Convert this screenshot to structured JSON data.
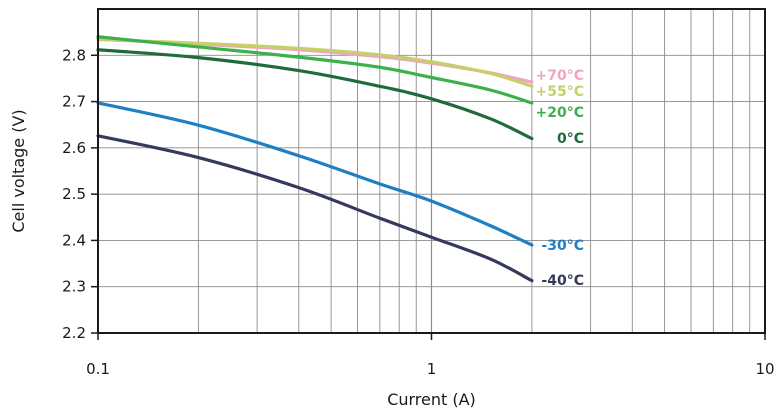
{
  "chart_data": {
    "type": "line",
    "title": "",
    "xlabel": "Current (A)",
    "ylabel": "Cell voltage (V)",
    "xscale": "log",
    "xlim": [
      0.1,
      10
    ],
    "ylim": [
      2.2,
      2.9
    ],
    "xticks": [
      {
        "value": 0.1,
        "label": "0.1"
      },
      {
        "value": 1,
        "label": "1"
      },
      {
        "value": 10,
        "label": "10"
      }
    ],
    "yticks": [
      {
        "value": 2.2,
        "label": "2.2"
      },
      {
        "value": 2.3,
        "label": "2.3"
      },
      {
        "value": 2.4,
        "label": "2.4"
      },
      {
        "value": 2.5,
        "label": "2.5"
      },
      {
        "value": 2.6,
        "label": "2.6"
      },
      {
        "value": 2.7,
        "label": "2.7"
      },
      {
        "value": 2.8,
        "label": "2.8"
      }
    ],
    "grid": true,
    "series": [
      {
        "name": "+70°C",
        "color": "#f0a4c4",
        "x": [
          0.1,
          0.2,
          0.4,
          0.7,
          1.0,
          1.5,
          2.0
        ],
        "y": [
          2.835,
          2.824,
          2.812,
          2.797,
          2.783,
          2.762,
          2.742
        ]
      },
      {
        "name": "+55°C",
        "color": "#c6cf6a",
        "x": [
          0.1,
          0.2,
          0.4,
          0.7,
          1.0,
          1.5,
          2.0
        ],
        "y": [
          2.834,
          2.826,
          2.815,
          2.801,
          2.786,
          2.761,
          2.733
        ]
      },
      {
        "name": "+20°C",
        "color": "#3cb04a",
        "x": [
          0.1,
          0.2,
          0.4,
          0.7,
          1.0,
          1.5,
          2.0
        ],
        "y": [
          2.84,
          2.818,
          2.796,
          2.774,
          2.752,
          2.725,
          2.697
        ]
      },
      {
        "name": "0°C",
        "color": "#1f6b3a",
        "x": [
          0.1,
          0.2,
          0.4,
          0.7,
          1.0,
          1.5,
          2.0
        ],
        "y": [
          2.812,
          2.795,
          2.767,
          2.733,
          2.706,
          2.663,
          2.62
        ]
      },
      {
        "name": "-30°C",
        "color": "#1e7fc4",
        "x": [
          0.1,
          0.2,
          0.4,
          0.7,
          1.0,
          1.5,
          2.0
        ],
        "y": [
          2.697,
          2.649,
          2.583,
          2.522,
          2.485,
          2.432,
          2.39
        ]
      },
      {
        "name": "-40°C",
        "color": "#353a5c",
        "x": [
          0.1,
          0.2,
          0.4,
          0.7,
          1.0,
          1.5,
          2.0
        ],
        "y": [
          2.626,
          2.579,
          2.514,
          2.448,
          2.407,
          2.36,
          2.313
        ]
      }
    ]
  }
}
